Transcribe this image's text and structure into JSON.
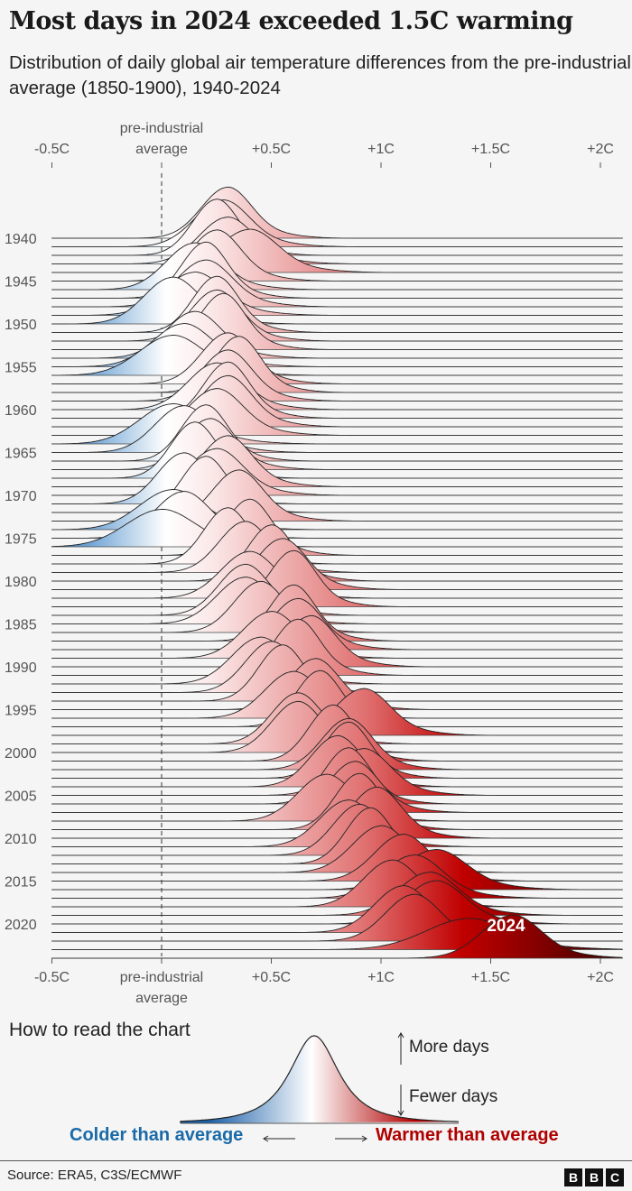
{
  "title": "Most days in 2024 exceeded 1.5C warming",
  "subtitle": "Distribution of daily global air temperature differences from the pre-industrial average (1850-1900), 1940-2024",
  "chart_data": {
    "type": "ridgeline",
    "xlim": [
      -0.5,
      2.1
    ],
    "x_ticks": [
      {
        "value": -0.5,
        "label": "-0.5C"
      },
      {
        "value": 0,
        "label": "pre-industrial average",
        "label_top": "pre-industrial",
        "label_bottom": "average"
      },
      {
        "value": 0.5,
        "label": "+0.5C"
      },
      {
        "value": 1,
        "label": "+1C"
      },
      {
        "value": 1.5,
        "label": "+1.5C"
      },
      {
        "value": 2,
        "label": "+2C"
      }
    ],
    "year_labels": [
      "1940",
      "1945",
      "1950",
      "1955",
      "1960",
      "1965",
      "1970",
      "1975",
      "1980",
      "1985",
      "1990",
      "1995",
      "2000",
      "2005",
      "2010",
      "2015",
      "2020"
    ],
    "highlight_label": "2024",
    "reference_line": 0,
    "first_year": 1940,
    "peak_anomaly_by_year": [
      0.3,
      0.28,
      0.25,
      0.3,
      0.4,
      0.25,
      0.15,
      0.2,
      0.2,
      0.15,
      0.05,
      0.25,
      0.25,
      0.28,
      0.15,
      0.1,
      0.05,
      0.3,
      0.35,
      0.3,
      0.25,
      0.3,
      0.3,
      0.25,
      0.05,
      0.1,
      0.2,
      0.22,
      0.15,
      0.3,
      0.25,
      0.1,
      0.2,
      0.35,
      0.05,
      0.1,
      0.0,
      0.4,
      0.3,
      0.38,
      0.5,
      0.55,
      0.4,
      0.6,
      0.38,
      0.38,
      0.45,
      0.6,
      0.62,
      0.5,
      0.68,
      0.62,
      0.45,
      0.5,
      0.55,
      0.7,
      0.6,
      0.72,
      0.92,
      0.62,
      0.62,
      0.78,
      0.85,
      0.85,
      0.8,
      0.92,
      0.85,
      0.88,
      0.75,
      0.9,
      0.98,
      0.85,
      0.9,
      0.95,
      1.0,
      1.1,
      1.25,
      1.15,
      1.05,
      1.22,
      1.25,
      1.1,
      1.15,
      1.4,
      1.6
    ],
    "spread_by_year": [
      0.11,
      0.12,
      0.1,
      0.12,
      0.13,
      0.11,
      0.12,
      0.1,
      0.12,
      0.13,
      0.12,
      0.1,
      0.11,
      0.1,
      0.12,
      0.13,
      0.14,
      0.11,
      0.1,
      0.11,
      0.12,
      0.1,
      0.11,
      0.12,
      0.14,
      0.12,
      0.1,
      0.11,
      0.1,
      0.11,
      0.12,
      0.11,
      0.1,
      0.11,
      0.14,
      0.12,
      0.15,
      0.1,
      0.1,
      0.11,
      0.1,
      0.11,
      0.12,
      0.1,
      0.11,
      0.12,
      0.11,
      0.1,
      0.11,
      0.12,
      0.11,
      0.1,
      0.12,
      0.11,
      0.1,
      0.11,
      0.12,
      0.1,
      0.12,
      0.11,
      0.11,
      0.1,
      0.11,
      0.1,
      0.11,
      0.12,
      0.1,
      0.11,
      0.12,
      0.1,
      0.11,
      0.12,
      0.11,
      0.1,
      0.12,
      0.12,
      0.14,
      0.13,
      0.12,
      0.13,
      0.13,
      0.12,
      0.12,
      0.18,
      0.13
    ],
    "color_scale": {
      "cold": "#2a78c0",
      "neutral": "#ffffff",
      "warm": "#c00000",
      "hottest": "#3a0000"
    }
  },
  "legend": {
    "heading": "How to read the chart",
    "more_days": "More days",
    "fewer_days": "Fewer days",
    "colder": "Colder than average",
    "warmer": "Warmer than average"
  },
  "footer": {
    "source": "Source: ERA5, C3S/ECMWF",
    "logo": [
      "B",
      "B",
      "C"
    ]
  }
}
